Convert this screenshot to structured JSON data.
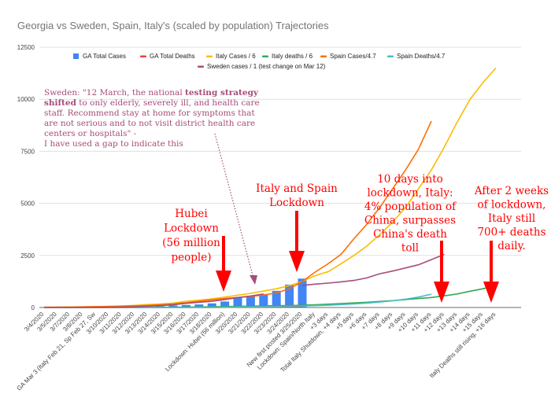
{
  "chart_data": {
    "type": "bar+line",
    "title": "Georgia vs Sweden, Spain, Italy's (scaled by population) Trajectories",
    "xlabel": "",
    "ylabel": "",
    "ylim": [
      0,
      12500
    ],
    "yticks": [
      0,
      2500,
      5000,
      7500,
      10000,
      12500
    ],
    "grid": true,
    "legend_placement": "top",
    "categories": [
      "3/4/2020",
      "3/5/2020",
      "3/7/2020",
      "3/8/2020",
      "GA Mar 3 (Italy Feb 21, Sp Feb 27, Sw",
      "3/10/2020",
      "3/11/2020",
      "3/12/2020",
      "3/13/2020",
      "3/14/2020",
      "3/15/2020",
      "3/16/2020",
      "3/17/2020",
      "3/18/2020",
      "Lockdown: Hubei (56 million)",
      "3/20/2020",
      "3/21/2020",
      "3/22/2020",
      "3/23/2020",
      "3/24/2020",
      "New first posted 3/25/2020",
      "Lockdown: Spain/North Italy",
      "+3 days",
      "Total Italy Shutdown, +4 days",
      "+5 days",
      "+6 days",
      "+7 days",
      "+8 days",
      "+9 days",
      "+10 days",
      "+11 days",
      "+12 days",
      "+13 days",
      "+14 days",
      "+15 days",
      "Italy Deaths still rising, +16 days"
    ],
    "series": [
      {
        "name": "GA Total Cases",
        "type": "bar",
        "color": "#4285f4",
        "values": [
          2,
          2,
          5,
          6,
          12,
          17,
          22,
          31,
          42,
          66,
          99,
          121,
          146,
          197,
          287,
          485,
          555,
          620,
          800,
          1097,
          1387,
          null,
          null,
          null,
          null,
          null,
          null,
          null,
          null,
          null,
          null,
          null,
          null,
          null,
          null,
          null
        ]
      },
      {
        "name": "GA Total Deaths",
        "type": "line",
        "color": "#ea4335",
        "values": [
          0,
          0,
          0,
          0,
          0,
          0,
          0,
          0,
          0,
          0,
          0,
          1,
          1,
          1,
          10,
          10,
          20,
          20,
          25,
          32,
          40,
          null,
          null,
          null,
          null,
          null,
          null,
          null,
          null,
          null,
          null,
          null,
          null,
          null,
          null,
          null
        ]
      },
      {
        "name": "Italy Cases / 6",
        "type": "line",
        "color": "#fbbc04",
        "values": [
          13,
          18,
          25,
          31,
          39,
          51,
          77,
          103,
          140,
          168,
          210,
          300,
          350,
          410,
          500,
          590,
          680,
          790,
          900,
          1050,
          1250,
          1530,
          1720,
          2100,
          2500,
          2950,
          3500,
          4100,
          4800,
          5700,
          6600,
          7700,
          8900,
          10000,
          10800,
          11500
        ]
      },
      {
        "name": "Italy deaths / 6",
        "type": "line",
        "color": "#34a853",
        "values": [
          1,
          1,
          2,
          3,
          4,
          5,
          6,
          8,
          10,
          13,
          17,
          22,
          28,
          35,
          45,
          55,
          65,
          75,
          85,
          95,
          110,
          130,
          160,
          185,
          220,
          250,
          290,
          330,
          380,
          430,
          480,
          560,
          650,
          780,
          900,
          1060
        ]
      },
      {
        "name": "Spain Cases/4.7",
        "type": "line",
        "color": "#ff6d01",
        "values": [
          10,
          15,
          20,
          30,
          40,
          50,
          60,
          80,
          100,
          130,
          170,
          230,
          300,
          370,
          430,
          480,
          530,
          600,
          700,
          900,
          1250,
          1700,
          2100,
          2550,
          3300,
          4000,
          4800,
          5700,
          6600,
          7600,
          8950,
          null,
          null,
          null,
          null,
          null
        ]
      },
      {
        "name": "Spain Deaths/4.7",
        "type": "line",
        "color": "#46bdc6",
        "values": [
          0,
          0,
          0,
          0,
          0,
          1,
          1,
          2,
          3,
          4,
          5,
          7,
          10,
          15,
          20,
          25,
          30,
          40,
          50,
          60,
          70,
          90,
          110,
          140,
          170,
          210,
          260,
          320,
          400,
          500,
          640,
          null,
          null,
          null,
          null,
          null
        ]
      },
      {
        "name": "Sweden cases / 1 (test change on Mar 12)",
        "type": "line",
        "color": "#a64d79",
        "values": [
          1,
          1,
          2,
          3,
          7,
          10,
          15,
          30,
          60,
          90,
          130,
          200,
          250,
          300,
          380,
          480,
          550,
          650,
          null,
          null,
          1060,
          1120,
          1170,
          1230,
          1300,
          1420,
          1620,
          1750,
          1900,
          2050,
          2300,
          2550,
          null,
          null,
          null,
          null
        ]
      }
    ],
    "annotations": {
      "sweden": {
        "lines": [
          [
            "Sweden: \"12 March, the national ",
            "testing strategy"
          ],
          [
            "shifted",
            " to only elderly, severely ill, and health care"
          ],
          [
            "staff. Recommend stay at home for symptoms that"
          ],
          [
            "are not serious and to not visit district health care"
          ],
          [
            "centers or hospitals\" -"
          ],
          [
            "I have used a gap to indicate this"
          ]
        ]
      },
      "hubei": [
        "Hubei",
        "Lockdown",
        "(56 million",
        "people)"
      ],
      "italy_spain": [
        "Italy and Spain",
        "Lockdown"
      ],
      "ten_days": [
        "10 days into",
        "lockdown, Italy:",
        "4% population of",
        "China, surpasses",
        "China's death",
        "toll"
      ],
      "two_weeks": [
        "After 2 weeks",
        "of lockdown,",
        "Italy still",
        "700+ deaths",
        "daily."
      ]
    }
  }
}
